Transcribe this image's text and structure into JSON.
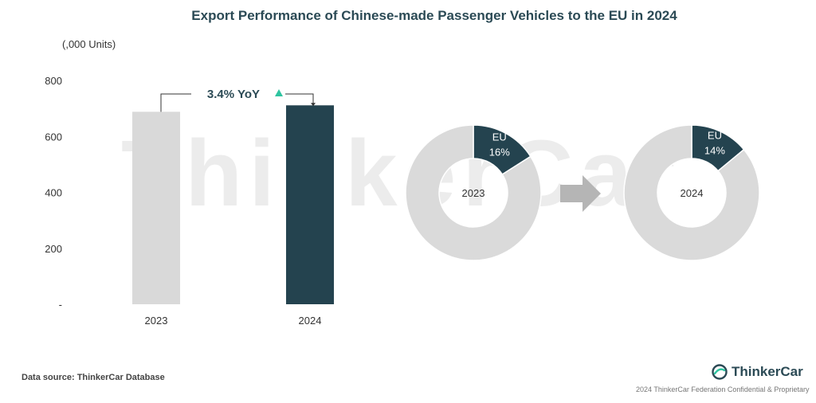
{
  "title": "Export Performance of Chinese-made Passenger Vehicles to the EU in 2024",
  "unit_label": "(,000 Units)",
  "watermark": "ThinkerCar",
  "source": "Data source: ThinkerCar Database",
  "brand": "ThinkerCar",
  "copyright": "2024 ThinkerCar Federation Confidential & Proprietary",
  "colors": {
    "bar_2023": "#d9d9d9",
    "bar_2024": "#24434f",
    "eu_share": "#24434f",
    "rest_share": "#dadada",
    "yoy_arrow": "#2ec4a0",
    "arrow": "#b5b5b5"
  },
  "chart_data": [
    {
      "type": "bar",
      "categories": [
        "2023",
        "2024"
      ],
      "values": [
        688,
        711
      ],
      "ylabel": "(,000 Units)",
      "ylim": [
        0,
        800
      ],
      "yticks": [
        {
          "value": 0,
          "label": "-"
        },
        {
          "value": 200,
          "label": "200"
        },
        {
          "value": 400,
          "label": "400"
        },
        {
          "value": 600,
          "label": "600"
        },
        {
          "value": 800,
          "label": "800"
        }
      ],
      "annotation": {
        "text": "3.4% YoY",
        "direction": "up"
      },
      "grid": false
    },
    {
      "type": "pie",
      "variant": "donut",
      "center_label": "2023",
      "slices": [
        {
          "label": "EU",
          "value": 16,
          "value_label": "16%"
        },
        {
          "label": "",
          "value": 84
        }
      ]
    },
    {
      "type": "pie",
      "variant": "donut",
      "center_label": "2024",
      "slices": [
        {
          "label": "EU",
          "value": 14,
          "value_label": "14%"
        },
        {
          "label": "",
          "value": 86
        }
      ]
    }
  ]
}
